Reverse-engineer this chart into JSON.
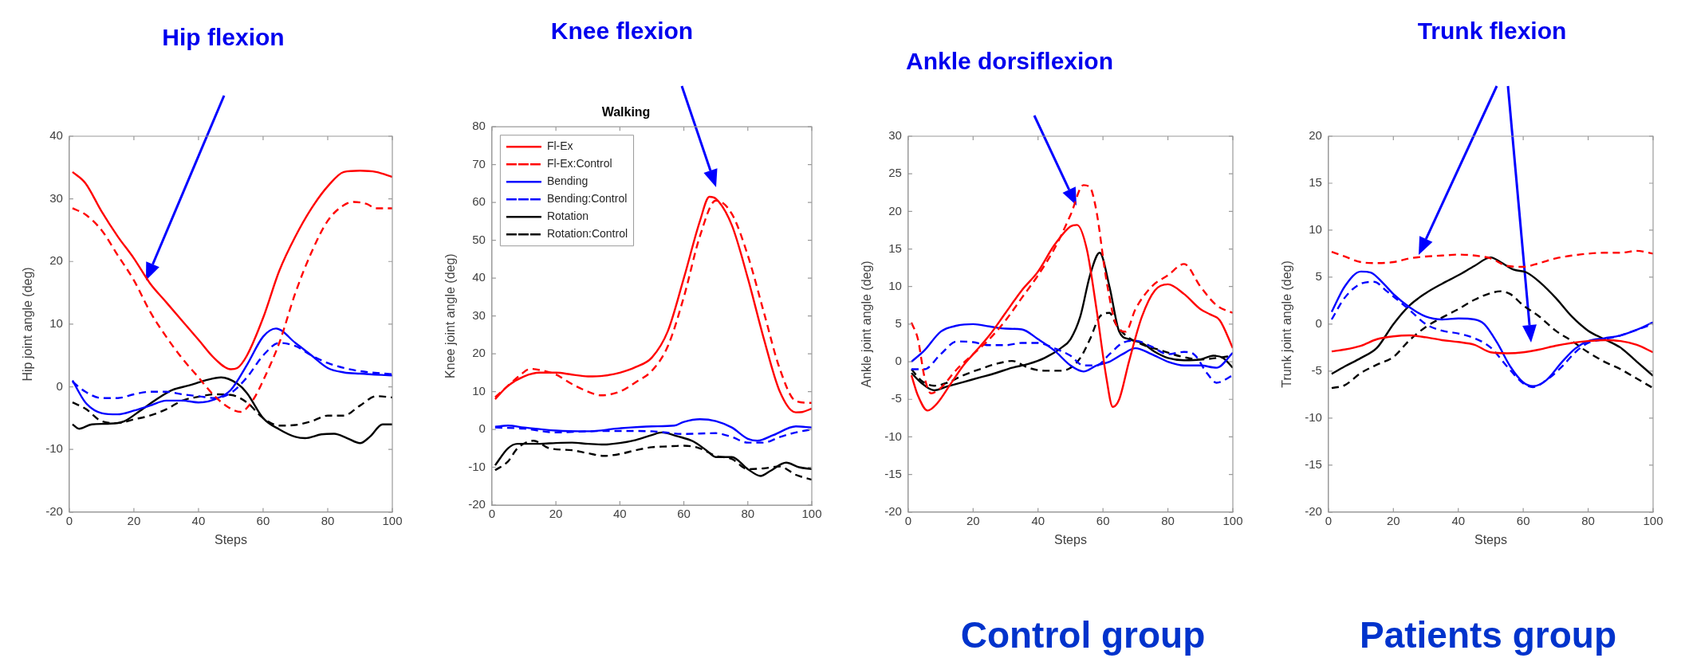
{
  "chart_data": [
    {
      "type": "line",
      "xlabel": "Steps",
      "ylabel": "Hip joint angle (deg)",
      "annotations": [
        "Hip flexion"
      ],
      "xlim": [
        0,
        100
      ],
      "xticks": [
        0,
        20,
        40,
        60,
        80,
        100
      ],
      "ylim": [
        -20,
        40
      ],
      "yticks": [
        -20,
        -10,
        0,
        10,
        20,
        30,
        40
      ],
      "grid": false,
      "legend": false,
      "marker": "none",
      "series": [
        {
          "color": "#ff0000",
          "line_style": "solid",
          "x": [
            1,
            5,
            10,
            15,
            20,
            25,
            30,
            35,
            40,
            45,
            50,
            52,
            55,
            60,
            65,
            70,
            75,
            80,
            85,
            90,
            95,
            100
          ],
          "values": [
            34.3,
            32.5,
            28,
            24,
            20.5,
            16.5,
            13.5,
            10.5,
            7.5,
            4.5,
            2.8,
            3,
            5,
            11,
            18.5,
            24,
            28.5,
            32,
            34.3,
            34.5,
            34.3,
            33.5
          ]
        },
        {
          "color": "#ff0000",
          "line_style": "dashed",
          "x": [
            1,
            5,
            10,
            15,
            20,
            25,
            30,
            35,
            40,
            45,
            50,
            53,
            57,
            60,
            65,
            70,
            75,
            80,
            85,
            88,
            92,
            95,
            100
          ],
          "values": [
            28.5,
            27.5,
            25,
            21,
            17,
            12,
            8,
            4.5,
            1.5,
            -1.5,
            -3.5,
            -4,
            -2,
            1,
            7,
            15,
            21.5,
            26.5,
            29,
            29.5,
            29.2,
            28.5,
            28.5
          ]
        },
        {
          "color": "#0000ff",
          "line_style": "solid",
          "x": [
            1,
            5,
            10,
            15,
            20,
            25,
            30,
            35,
            40,
            45,
            50,
            55,
            60,
            64,
            70,
            75,
            80,
            85,
            90,
            100
          ],
          "values": [
            1,
            -2.5,
            -4.2,
            -4.4,
            -3.8,
            -3,
            -2.2,
            -2.2,
            -2.5,
            -2,
            -0.5,
            3.5,
            8,
            9.3,
            7,
            5,
            3,
            2.3,
            2.1,
            1.8
          ]
        },
        {
          "color": "#0000ff",
          "line_style": "dashed",
          "x": [
            1,
            5,
            10,
            15,
            20,
            25,
            30,
            35,
            40,
            45,
            50,
            55,
            60,
            65,
            70,
            75,
            80,
            85,
            90,
            100
          ],
          "values": [
            0.8,
            -0.8,
            -1.8,
            -1.8,
            -1.2,
            -0.8,
            -0.8,
            -1.2,
            -1.5,
            -1.8,
            -1,
            1.5,
            5,
            7,
            6.5,
            5,
            3.8,
            3,
            2.5,
            2
          ]
        },
        {
          "color": "#000000",
          "line_style": "solid",
          "x": [
            1,
            3,
            7,
            12,
            17,
            22,
            27,
            32,
            37,
            42,
            47,
            52,
            55,
            60,
            65,
            70,
            73,
            78,
            82,
            86,
            90,
            93,
            97,
            100
          ],
          "values": [
            -6,
            -6.7,
            -6,
            -5.9,
            -5.5,
            -3.8,
            -2,
            -0.5,
            0.2,
            1,
            1.5,
            0.5,
            -1,
            -5,
            -6.8,
            -8,
            -8.2,
            -7.6,
            -7.5,
            -8.2,
            -9,
            -8,
            -6,
            -6
          ]
        },
        {
          "color": "#000000",
          "line_style": "dashed",
          "x": [
            1,
            5,
            10,
            15,
            20,
            25,
            30,
            35,
            40,
            45,
            50,
            55,
            60,
            65,
            70,
            75,
            80,
            85,
            90,
            95,
            100
          ],
          "values": [
            -2.5,
            -3.5,
            -5.5,
            -5.8,
            -5.2,
            -4.6,
            -3.6,
            -2.2,
            -1.6,
            -1.2,
            -1.3,
            -2.5,
            -5,
            -6.2,
            -6.1,
            -5.5,
            -4.6,
            -4.6,
            -3,
            -1.5,
            -1.7
          ]
        }
      ]
    },
    {
      "type": "line",
      "title": "Walking",
      "ylabel": "Knee joint angle (deg)",
      "annotations": [
        "Knee flexion"
      ],
      "xlim": [
        0,
        100
      ],
      "xticks": [
        0,
        20,
        40,
        60,
        80,
        100
      ],
      "ylim": [
        -20,
        80
      ],
      "yticks": [
        -20,
        -10,
        0,
        10,
        20,
        30,
        40,
        50,
        60,
        70,
        80
      ],
      "grid": false,
      "legend": "top left",
      "marker": "none",
      "series": [
        {
          "name": "Fl-Ex",
          "color": "#ff0000",
          "line_style": "solid",
          "x": [
            1,
            5,
            10,
            15,
            20,
            25,
            30,
            35,
            40,
            45,
            50,
            55,
            60,
            65,
            68,
            70,
            75,
            80,
            85,
            90,
            95,
            97,
            100
          ],
          "values": [
            8,
            11.5,
            14,
            15,
            15,
            14.5,
            14,
            14.2,
            15,
            16.5,
            19,
            26,
            40,
            55,
            61.5,
            61,
            54,
            40,
            24,
            10,
            4.5,
            4.6,
            5.5
          ]
        },
        {
          "name": "Fl-Ex:Control",
          "color": "#ff0000",
          "line_style": "dashed",
          "x": [
            1,
            5,
            9,
            12,
            15,
            20,
            25,
            30,
            34,
            40,
            45,
            50,
            55,
            60,
            65,
            70,
            75,
            80,
            85,
            90,
            95,
            100
          ],
          "values": [
            8.5,
            11.5,
            14.5,
            16,
            15.7,
            14.5,
            12,
            10,
            9,
            10,
            12.5,
            15.5,
            22,
            35,
            51,
            60.5,
            57,
            46,
            31,
            16,
            7.5,
            7
          ]
        },
        {
          "name": "Bending",
          "color": "#0000ff",
          "line_style": "solid",
          "x": [
            1,
            5,
            10,
            20,
            30,
            40,
            50,
            57,
            60,
            65,
            70,
            75,
            80,
            83,
            88,
            95,
            100
          ],
          "values": [
            0.7,
            1,
            0.5,
            -0.3,
            -0.5,
            0.3,
            0.8,
            1,
            2,
            2.7,
            2.2,
            0.5,
            -2.5,
            -3,
            -1.5,
            0.8,
            0.5
          ]
        },
        {
          "name": "Bending:Control",
          "color": "#0000ff",
          "line_style": "dashed",
          "x": [
            1,
            10,
            20,
            30,
            40,
            50,
            60,
            70,
            75,
            80,
            85,
            90,
            95,
            100
          ],
          "values": [
            0.5,
            0.2,
            -0.8,
            -0.5,
            -0.4,
            -0.5,
            -1.2,
            -1,
            -2,
            -3.5,
            -3.5,
            -2,
            -0.8,
            0
          ]
        },
        {
          "name": "Rotation",
          "color": "#000000",
          "line_style": "solid",
          "x": [
            1,
            5,
            8,
            15,
            20,
            25,
            30,
            35,
            40,
            45,
            50,
            53,
            58,
            63,
            67,
            70,
            75,
            80,
            84,
            87,
            92,
            96,
            100
          ],
          "values": [
            -9.5,
            -5,
            -3.8,
            -3.8,
            -3.6,
            -3.5,
            -3.8,
            -4,
            -3.6,
            -2.8,
            -1.5,
            -0.8,
            -1.8,
            -3.2,
            -5.5,
            -7.3,
            -7.3,
            -10.5,
            -12.3,
            -11,
            -8.8,
            -10,
            -10.5
          ]
        },
        {
          "name": "Rotation:Control",
          "color": "#000000",
          "line_style": "dashed",
          "x": [
            1,
            5,
            8,
            13,
            18,
            25,
            30,
            35,
            40,
            45,
            50,
            55,
            60,
            65,
            70,
            75,
            80,
            85,
            90,
            95,
            100
          ],
          "values": [
            -10.8,
            -8.5,
            -5,
            -3,
            -5,
            -5.5,
            -6.3,
            -7,
            -6.5,
            -5.5,
            -4.7,
            -4.5,
            -4.3,
            -5,
            -7,
            -7.8,
            -10.5,
            -10.3,
            -9.8,
            -12,
            -13.3
          ]
        }
      ]
    },
    {
      "type": "line",
      "xlabel": "Steps",
      "ylabel": "Ankle joint angle (deg)",
      "annotations": [
        "Ankle dorsiflexion",
        "Control group"
      ],
      "xlim": [
        0,
        100
      ],
      "xticks": [
        0,
        20,
        40,
        60,
        80,
        100
      ],
      "ylim": [
        -20,
        30
      ],
      "yticks": [
        -20,
        -15,
        -10,
        -5,
        0,
        5,
        10,
        15,
        20,
        25,
        30
      ],
      "grid": false,
      "legend": false,
      "marker": "none",
      "series": [
        {
          "color": "#ff0000",
          "line_style": "solid",
          "x": [
            1,
            3,
            6,
            9,
            13,
            17,
            20,
            25,
            30,
            35,
            40,
            45,
            50,
            52,
            55,
            58,
            61,
            63,
            65,
            68,
            72,
            76,
            80,
            85,
            90,
            93,
            96,
            100
          ],
          "values": [
            -1.8,
            -4.5,
            -6.5,
            -5.5,
            -3,
            -0.5,
            1,
            3.5,
            6.5,
            9.5,
            12,
            15.5,
            18,
            18.2,
            15,
            7,
            -2,
            -6,
            -5,
            0,
            6,
            9.5,
            10.3,
            9,
            7,
            6.3,
            5.5,
            1.8
          ]
        },
        {
          "color": "#ff0000",
          "line_style": "dashed",
          "x": [
            1,
            3,
            5,
            7,
            10,
            15,
            20,
            25,
            30,
            35,
            40,
            45,
            50,
            54,
            56,
            58,
            61,
            64,
            67,
            70,
            75,
            80,
            85,
            90,
            95,
            100
          ],
          "values": [
            5.2,
            3,
            -2,
            -4.2,
            -3.5,
            -1,
            1,
            3,
            5.5,
            8.5,
            11.5,
            15,
            19.5,
            23.5,
            23.2,
            20,
            11,
            5,
            4,
            7,
            10,
            11.5,
            13,
            10,
            7.5,
            6.5
          ]
        },
        {
          "color": "#0000ff",
          "line_style": "solid",
          "x": [
            1,
            5,
            10,
            15,
            20,
            25,
            30,
            35,
            40,
            45,
            50,
            54,
            58,
            62,
            66,
            70,
            75,
            80,
            85,
            90,
            95,
            100
          ],
          "values": [
            0,
            1.5,
            4,
            4.8,
            5,
            4.7,
            4.4,
            4.3,
            3,
            1.5,
            -0.5,
            -1.3,
            -0.5,
            0,
            1,
            1.8,
            1,
            0,
            -0.5,
            -0.5,
            -0.8,
            1.2
          ]
        },
        {
          "color": "#0000ff",
          "line_style": "dashed",
          "x": [
            1,
            5,
            10,
            15,
            20,
            25,
            30,
            35,
            40,
            45,
            50,
            54,
            58,
            62,
            66,
            70,
            75,
            80,
            85,
            88,
            92,
            95,
            100
          ],
          "values": [
            -1,
            -1,
            1,
            2.7,
            2.6,
            2.2,
            2.2,
            2.5,
            2.5,
            1.8,
            0.8,
            -0.5,
            -0.5,
            1,
            2.5,
            2.8,
            2,
            1,
            1.3,
            1,
            -1.5,
            -2.8,
            -1.8
          ]
        },
        {
          "color": "#000000",
          "line_style": "solid",
          "x": [
            1,
            4,
            8,
            12,
            17,
            22,
            27,
            32,
            37,
            42,
            47,
            50,
            53,
            56,
            59,
            62,
            65,
            68,
            72,
            76,
            80,
            85,
            90,
            94,
            97,
            100
          ],
          "values": [
            -1.5,
            -2.8,
            -3.8,
            -3.3,
            -2.7,
            -2.1,
            -1.5,
            -0.8,
            -0.3,
            0.5,
            1.8,
            3,
            6,
            11.5,
            14.5,
            10,
            4,
            3,
            2.5,
            1.3,
            0.5,
            0.2,
            0.3,
            0.8,
            0.5,
            -0.8
          ]
        },
        {
          "color": "#000000",
          "line_style": "dashed",
          "x": [
            1,
            4,
            8,
            12,
            17,
            22,
            27,
            32,
            37,
            42,
            47,
            50,
            53,
            56,
            59,
            62,
            64,
            67,
            72,
            78,
            84,
            90,
            95,
            100
          ],
          "values": [
            -1,
            -2.5,
            -3.2,
            -2.8,
            -1.8,
            -1,
            -0.3,
            0.1,
            -0.8,
            -1.2,
            -1.2,
            -0.8,
            0.5,
            3,
            6,
            6.5,
            5,
            3.5,
            2.3,
            1.5,
            0.7,
            0.3,
            0.5,
            0.8
          ]
        }
      ]
    },
    {
      "type": "line",
      "xlabel": "Steps",
      "ylabel": "Trunk joint angle (deg)",
      "annotations": [
        "Trunk flexion",
        "Patients group"
      ],
      "xlim": [
        0,
        100
      ],
      "xticks": [
        0,
        20,
        40,
        60,
        80,
        100
      ],
      "ylim": [
        -20,
        20
      ],
      "yticks": [
        -20,
        -15,
        -10,
        -5,
        0,
        5,
        10,
        15,
        20
      ],
      "grid": false,
      "legend": false,
      "marker": "none",
      "series": [
        {
          "color": "#ff0000",
          "line_style": "solid",
          "x": [
            1,
            5,
            10,
            15,
            20,
            25,
            30,
            35,
            40,
            45,
            50,
            55,
            60,
            65,
            70,
            75,
            80,
            85,
            90,
            95,
            100
          ],
          "values": [
            -2.9,
            -2.7,
            -2.3,
            -1.6,
            -1.3,
            -1.2,
            -1.4,
            -1.7,
            -1.9,
            -2.2,
            -3,
            -3.1,
            -3,
            -2.7,
            -2.3,
            -2,
            -1.8,
            -1.7,
            -1.8,
            -2.2,
            -3
          ]
        },
        {
          "color": "#ff0000",
          "line_style": "dashed",
          "x": [
            1,
            5,
            10,
            15,
            20,
            25,
            30,
            35,
            40,
            45,
            50,
            55,
            60,
            65,
            70,
            75,
            80,
            85,
            90,
            95,
            100
          ],
          "values": [
            7.7,
            7.2,
            6.6,
            6.5,
            6.6,
            7,
            7.2,
            7.3,
            7.4,
            7.3,
            7,
            6.2,
            6.1,
            6.5,
            7,
            7.3,
            7.5,
            7.6,
            7.6,
            7.8,
            7.5
          ]
        },
        {
          "color": "#0000ff",
          "line_style": "solid",
          "x": [
            1,
            5,
            10,
            13,
            17,
            20,
            25,
            30,
            35,
            40,
            45,
            48,
            52,
            56,
            60,
            63,
            67,
            72,
            76,
            80,
            85,
            90,
            95,
            100
          ],
          "values": [
            1.3,
            4,
            5.6,
            5.5,
            4.3,
            3.2,
            1.8,
            0.8,
            0.5,
            0.6,
            0.5,
            0,
            -2,
            -4.5,
            -6.2,
            -6.6,
            -6,
            -4,
            -2.6,
            -1.8,
            -1.5,
            -1.2,
            -0.6,
            0.2
          ]
        },
        {
          "color": "#0000ff",
          "line_style": "dashed",
          "x": [
            1,
            5,
            10,
            14,
            18,
            25,
            30,
            35,
            40,
            45,
            50,
            55,
            60,
            63,
            67,
            72,
            76,
            80,
            85,
            90,
            95,
            100
          ],
          "values": [
            0.5,
            2.8,
            4.3,
            4.5,
            3.5,
            1.5,
            0,
            -0.7,
            -1,
            -1.5,
            -2.5,
            -4.5,
            -6.3,
            -6.7,
            -6,
            -4.5,
            -3,
            -2,
            -1.6,
            -1.2,
            -0.6,
            0
          ]
        },
        {
          "color": "#000000",
          "line_style": "solid",
          "x": [
            1,
            5,
            10,
            15,
            20,
            25,
            30,
            35,
            40,
            45,
            50,
            53,
            57,
            61,
            65,
            70,
            75,
            80,
            85,
            90,
            95,
            100
          ],
          "values": [
            -5.3,
            -4.5,
            -3.6,
            -2.5,
            0,
            2,
            3.3,
            4.3,
            5.2,
            6.2,
            7.1,
            6.6,
            5.8,
            5.5,
            4.5,
            2.8,
            0.8,
            -0.7,
            -1.6,
            -2.5,
            -4,
            -5.5
          ]
        },
        {
          "color": "#000000",
          "line_style": "dashed",
          "x": [
            1,
            5,
            10,
            15,
            20,
            25,
            30,
            35,
            40,
            45,
            50,
            53,
            56,
            60,
            65,
            70,
            75,
            80,
            85,
            90,
            95,
            100
          ],
          "values": [
            -6.8,
            -6.5,
            -5.2,
            -4.3,
            -3.5,
            -1.7,
            -0.3,
            0.7,
            1.6,
            2.6,
            3.3,
            3.5,
            3.2,
            2,
            0.8,
            -0.7,
            -1.8,
            -3,
            -4,
            -4.8,
            -5.8,
            -6.8
          ]
        }
      ]
    }
  ]
}
